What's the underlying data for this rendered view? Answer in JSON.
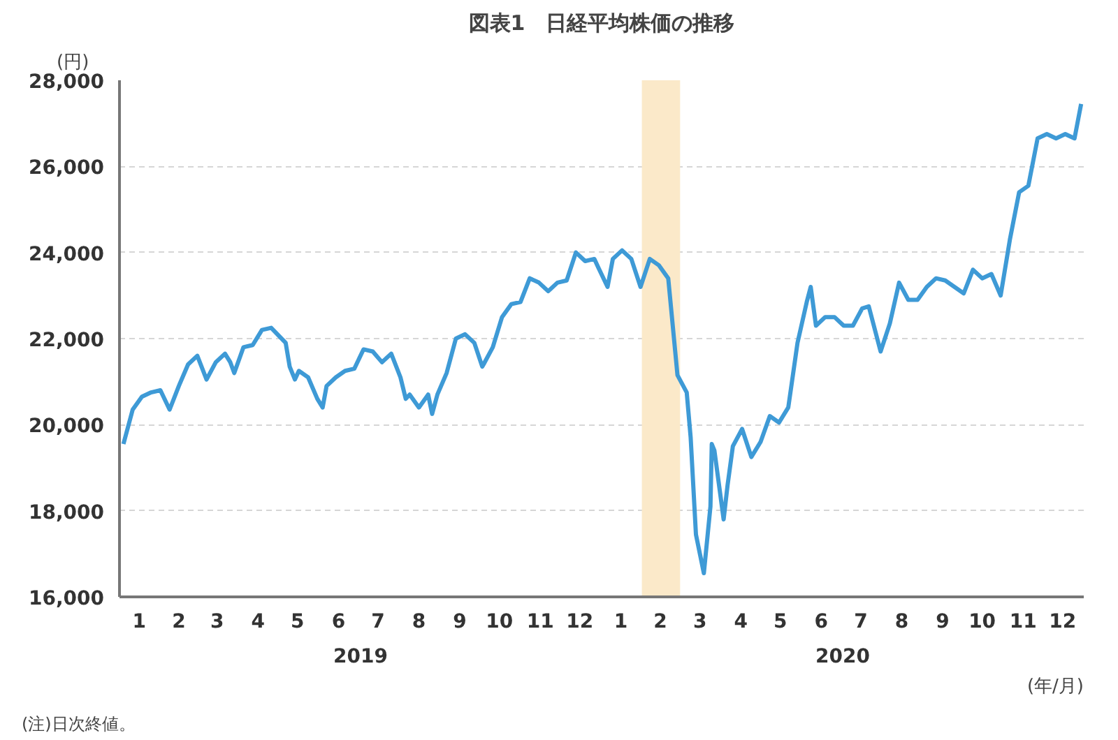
{
  "chart_data": {
    "type": "line",
    "title": "図表1　日経平均株価の推移",
    "ylabel": "(円)",
    "xlabel": "(年/月)",
    "annotations": [
      "2019",
      "2020",
      "(注)日次終値。"
    ],
    "x": [
      "2019-01-04",
      "2019-01-11",
      "2019-01-18",
      "2019-01-25",
      "2019-02-01",
      "2019-02-08",
      "2019-02-15",
      "2019-02-22",
      "2019-03-01",
      "2019-03-08",
      "2019-03-15",
      "2019-03-22",
      "2019-03-26",
      "2019-03-29",
      "2019-04-05",
      "2019-04-12",
      "2019-04-19",
      "2019-04-26",
      "2019-05-07",
      "2019-05-10",
      "2019-05-14",
      "2019-05-17",
      "2019-05-24",
      "2019-05-31",
      "2019-06-04",
      "2019-06-07",
      "2019-06-14",
      "2019-06-21",
      "2019-06-28",
      "2019-07-05",
      "2019-07-12",
      "2019-07-19",
      "2019-07-26",
      "2019-08-02",
      "2019-08-06",
      "2019-08-09",
      "2019-08-16",
      "2019-08-23",
      "2019-08-26",
      "2019-08-30",
      "2019-09-06",
      "2019-09-13",
      "2019-09-20",
      "2019-09-27",
      "2019-10-03",
      "2019-10-04",
      "2019-10-11",
      "2019-10-18",
      "2019-10-25",
      "2019-11-01",
      "2019-11-08",
      "2019-11-15",
      "2019-11-22",
      "2019-11-29",
      "2019-12-06",
      "2019-12-13",
      "2019-12-20",
      "2019-12-27",
      "2019-12-30",
      "2020-01-06",
      "2020-01-10",
      "2020-01-17",
      "2020-01-24",
      "2020-01-31",
      "2020-02-07",
      "2020-02-14",
      "2020-02-21",
      "2020-02-28",
      "2020-03-06",
      "2020-03-09",
      "2020-03-13",
      "2020-03-16",
      "2020-03-19",
      "2020-03-24",
      "2020-03-25",
      "2020-03-27",
      "2020-04-03",
      "2020-04-06",
      "2020-04-10",
      "2020-04-17",
      "2020-04-24",
      "2020-05-01",
      "2020-05-08",
      "2020-05-15",
      "2020-05-22",
      "2020-05-29",
      "2020-06-05",
      "2020-06-08",
      "2020-06-12",
      "2020-06-19",
      "2020-06-26",
      "2020-07-03",
      "2020-07-10",
      "2020-07-17",
      "2020-07-22",
      "2020-07-31",
      "2020-08-07",
      "2020-08-14",
      "2020-08-21",
      "2020-08-28",
      "2020-09-04",
      "2020-09-11",
      "2020-09-18",
      "2020-09-25",
      "2020-10-02",
      "2020-10-09",
      "2020-10-16",
      "2020-10-23",
      "2020-10-30",
      "2020-11-06",
      "2020-11-13",
      "2020-11-20",
      "2020-11-27",
      "2020-12-04",
      "2020-12-11",
      "2020-12-18",
      "2020-12-25",
      "2020-12-30"
    ],
    "series": [
      {
        "color": "#3e9ad6",
        "values": [
          19550,
          20350,
          20650,
          20750,
          20800,
          20350,
          20900,
          21400,
          21600,
          21050,
          21450,
          21650,
          21450,
          21200,
          21800,
          21850,
          22200,
          22250,
          21900,
          21350,
          21050,
          21250,
          21100,
          20600,
          20400,
          20900,
          21100,
          21250,
          21300,
          21750,
          21700,
          21450,
          21650,
          21100,
          20600,
          20700,
          20400,
          20700,
          20250,
          20700,
          21200,
          22000,
          22100,
          21900,
          21350,
          21400,
          21800,
          22500,
          22800,
          22850,
          23400,
          23300,
          23100,
          23300,
          23350,
          24000,
          23800,
          23850,
          23650,
          23200,
          23850,
          24050,
          23850,
          23200,
          23850,
          23700,
          23400,
          21150,
          20750,
          19700,
          17450,
          17000,
          16550,
          18100,
          19550,
          19400,
          17800,
          18600,
          19500,
          19900,
          19250,
          19600,
          20200,
          20050,
          20400,
          21900,
          22850,
          23200,
          22300,
          22500,
          22500,
          22300,
          22300,
          22700,
          22750,
          21700,
          22350,
          23300,
          22900,
          22900,
          23200,
          23400,
          23350,
          23200,
          23050,
          23600,
          23400,
          23500,
          23000,
          24300,
          25400,
          25550,
          26650,
          26750,
          26650,
          26750,
          26650,
          27450
        ]
      }
    ],
    "xlim": [
      "2019-01-01",
      "2021-01-01"
    ],
    "xticks": [
      {
        "value": "2019-01-01",
        "label": null
      },
      {
        "value": "2019-01-16",
        "label": "1"
      },
      {
        "value": "2019-02-01",
        "label": null
      },
      {
        "value": "2019-02-15",
        "label": "2"
      },
      {
        "value": "2019-03-01",
        "label": null
      },
      {
        "value": "2019-03-16",
        "label": "3"
      },
      {
        "value": "2019-04-01",
        "label": null
      },
      {
        "value": "2019-04-16",
        "label": "4"
      },
      {
        "value": "2019-05-01",
        "label": null
      },
      {
        "value": "2019-05-16",
        "label": "5"
      },
      {
        "value": "2019-06-01",
        "label": null
      },
      {
        "value": "2019-06-16",
        "label": "6"
      },
      {
        "value": "2019-07-01",
        "label": null
      },
      {
        "value": "2019-07-16",
        "label": "7"
      },
      {
        "value": "2019-08-01",
        "label": null
      },
      {
        "value": "2019-08-16",
        "label": "8"
      },
      {
        "value": "2019-09-01",
        "label": null
      },
      {
        "value": "2019-09-16",
        "label": "9"
      },
      {
        "value": "2019-10-01",
        "label": null
      },
      {
        "value": "2019-10-16",
        "label": "10"
      },
      {
        "value": "2019-11-01",
        "label": null
      },
      {
        "value": "2019-11-16",
        "label": "11"
      },
      {
        "value": "2019-12-01",
        "label": null
      },
      {
        "value": "2019-12-16",
        "label": "12"
      },
      {
        "value": "2020-01-01",
        "label": null
      },
      {
        "value": "2020-01-16",
        "label": "1"
      },
      {
        "value": "2020-02-01",
        "label": null
      },
      {
        "value": "2020-02-15",
        "label": "2"
      },
      {
        "value": "2020-03-01",
        "label": null
      },
      {
        "value": "2020-03-16",
        "label": "3"
      },
      {
        "value": "2020-04-01",
        "label": null
      },
      {
        "value": "2020-04-16",
        "label": "4"
      },
      {
        "value": "2020-05-01",
        "label": null
      },
      {
        "value": "2020-05-16",
        "label": "5"
      },
      {
        "value": "2020-06-01",
        "label": null
      },
      {
        "value": "2020-06-16",
        "label": "6"
      },
      {
        "value": "2020-07-01",
        "label": null
      },
      {
        "value": "2020-07-16",
        "label": "7"
      },
      {
        "value": "2020-08-01",
        "label": null
      },
      {
        "value": "2020-08-16",
        "label": "8"
      },
      {
        "value": "2020-09-01",
        "label": null
      },
      {
        "value": "2020-09-16",
        "label": "9"
      },
      {
        "value": "2020-10-01",
        "label": null
      },
      {
        "value": "2020-10-16",
        "label": "10"
      },
      {
        "value": "2020-11-01",
        "label": null
      },
      {
        "value": "2020-11-16",
        "label": "11"
      },
      {
        "value": "2020-12-01",
        "label": null
      },
      {
        "value": "2020-12-16",
        "label": "12"
      },
      {
        "value": "2021-01-01",
        "label": null
      }
    ],
    "ylim": [
      16000,
      28000
    ],
    "yticks": [
      {
        "value": 16000,
        "label": "16,000"
      },
      {
        "value": 18000,
        "label": "18,000"
      },
      {
        "value": 20000,
        "label": "20,000"
      },
      {
        "value": 22000,
        "label": "22,000"
      },
      {
        "value": 24000,
        "label": "24,000"
      },
      {
        "value": 26000,
        "label": "26,000"
      },
      {
        "value": 28000,
        "label": "28,000"
      }
    ],
    "bands": [
      {
        "axis": "x",
        "from": "2020-02-01",
        "to": "2020-03-01",
        "color": "#fbe9c9"
      }
    ],
    "grid": "y",
    "marker": "none",
    "line_style": "solid"
  }
}
